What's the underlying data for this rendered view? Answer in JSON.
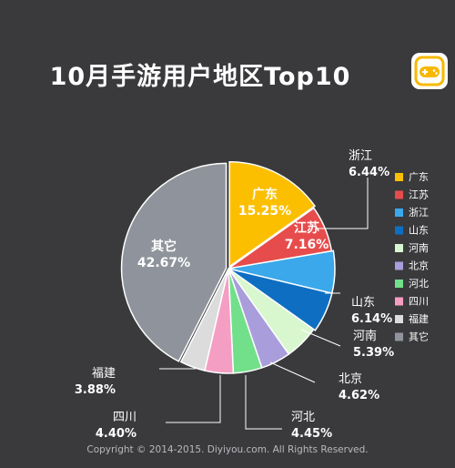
{
  "title": "10月手游用户地区Top10",
  "copyright": "Copyright © 2014-2015. Diyiyou.com. All Rights Reserved.",
  "logo": {
    "icon": "gamepad-icon",
    "colors": {
      "frame": "#f9b800",
      "pad": "#f9b800"
    }
  },
  "chart_data": {
    "type": "pie",
    "title": "10月手游用户地区Top10",
    "legend_position": "right",
    "value_unit": "%",
    "slices": [
      {
        "label": "广东",
        "value": 15.25,
        "display": "15.25%",
        "color": "#fbbf00"
      },
      {
        "label": "江苏",
        "value": 7.16,
        "display": "7.16%",
        "color": "#e74c4c"
      },
      {
        "label": "浙江",
        "value": 6.44,
        "display": "6.44%",
        "color": "#3aa8ea"
      },
      {
        "label": "山东",
        "value": 6.14,
        "display": "6.14%",
        "color": "#0e6fc2"
      },
      {
        "label": "河南",
        "value": 5.39,
        "display": "5.39%",
        "color": "#d8f7cf"
      },
      {
        "label": "北京",
        "value": 4.62,
        "display": "4.62%",
        "color": "#a99ddc"
      },
      {
        "label": "河北",
        "value": 4.45,
        "display": "4.45%",
        "color": "#72e08a"
      },
      {
        "label": "四川",
        "value": 4.4,
        "display": "4.40%",
        "color": "#f59ec3"
      },
      {
        "label": "福建",
        "value": 3.88,
        "display": "3.88%",
        "color": "#dcdcdc"
      },
      {
        "label": "其它",
        "value": 42.67,
        "display": "42.67%",
        "color": "#8f949c"
      }
    ]
  }
}
